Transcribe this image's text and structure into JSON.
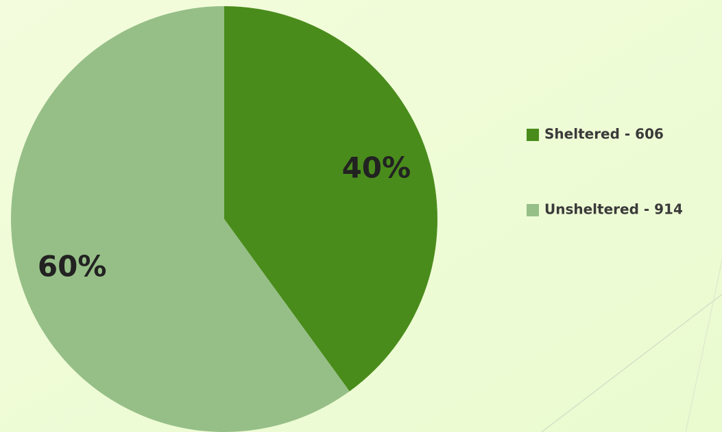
{
  "chart_data": {
    "type": "pie",
    "categories": [
      "Sheltered - 606",
      "Unsheltered - 914"
    ],
    "values": [
      40,
      60
    ],
    "value_labels": [
      "40%",
      "60%"
    ],
    "colors": [
      "#4a8c1c",
      "#96bf87"
    ],
    "legend": "right"
  }
}
